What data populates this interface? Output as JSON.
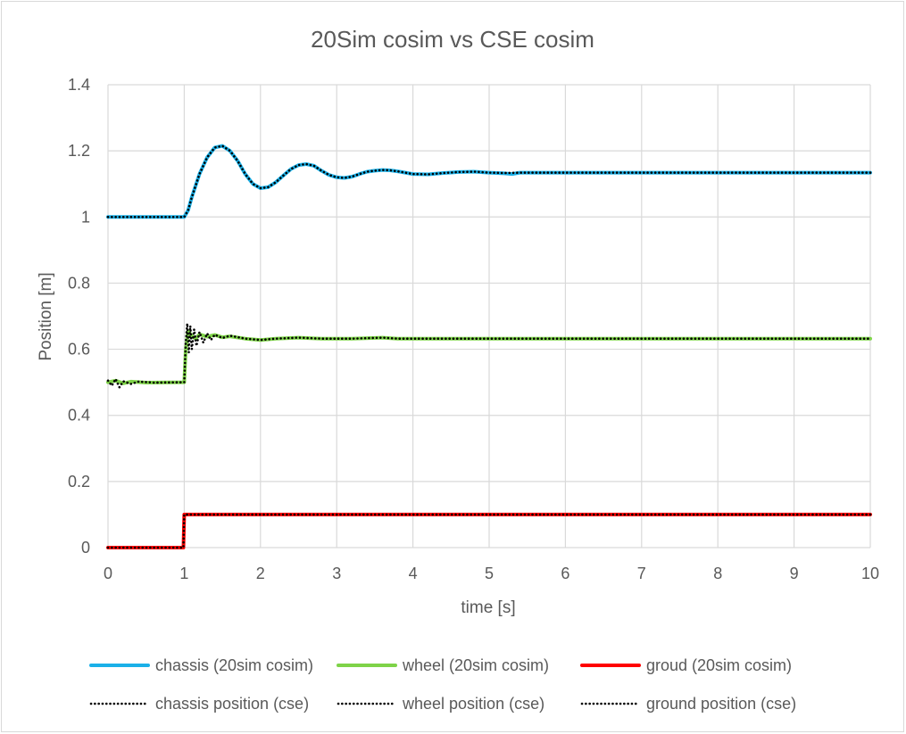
{
  "chart_data": {
    "type": "line",
    "title": "20Sim cosim vs CSE cosim",
    "xlabel": "time [s]",
    "ylabel": "Position [m]",
    "xlim": [
      0,
      10
    ],
    "ylim": [
      0,
      1.4
    ],
    "x_ticks": [
      "0",
      "1",
      "2",
      "3",
      "4",
      "5",
      "6",
      "7",
      "8",
      "9",
      "10"
    ],
    "y_ticks": [
      "0",
      "0.2",
      "0.4",
      "0.6",
      "0.8",
      "1",
      "1.2",
      "1.4"
    ],
    "grid": true,
    "legend_position": "bottom",
    "series": [
      {
        "name": "chassis (20sim cosim)",
        "color": "#1ab0e8",
        "style": "solid",
        "points": [
          [
            0,
            1
          ],
          [
            1,
            1
          ],
          [
            1.05,
            1.02
          ],
          [
            1.1,
            1.06
          ],
          [
            1.2,
            1.13
          ],
          [
            1.3,
            1.18
          ],
          [
            1.4,
            1.21
          ],
          [
            1.5,
            1.215
          ],
          [
            1.6,
            1.2
          ],
          [
            1.7,
            1.17
          ],
          [
            1.8,
            1.13
          ],
          [
            1.9,
            1.1
          ],
          [
            2.0,
            1.087
          ],
          [
            2.1,
            1.09
          ],
          [
            2.2,
            1.105
          ],
          [
            2.3,
            1.125
          ],
          [
            2.4,
            1.145
          ],
          [
            2.5,
            1.157
          ],
          [
            2.6,
            1.16
          ],
          [
            2.7,
            1.155
          ],
          [
            2.8,
            1.14
          ],
          [
            2.9,
            1.127
          ],
          [
            3.0,
            1.12
          ],
          [
            3.1,
            1.118
          ],
          [
            3.2,
            1.122
          ],
          [
            3.3,
            1.13
          ],
          [
            3.4,
            1.137
          ],
          [
            3.5,
            1.14
          ],
          [
            3.6,
            1.142
          ],
          [
            3.7,
            1.141
          ],
          [
            3.8,
            1.138
          ],
          [
            3.9,
            1.134
          ],
          [
            4.0,
            1.13
          ],
          [
            4.2,
            1.129
          ],
          [
            4.4,
            1.133
          ],
          [
            4.6,
            1.136
          ],
          [
            4.8,
            1.137
          ],
          [
            5.0,
            1.134
          ],
          [
            5.2,
            1.132
          ],
          [
            5.3,
            1.13
          ],
          [
            5.4,
            1.134
          ],
          [
            6,
            1.134
          ],
          [
            7,
            1.134
          ],
          [
            8,
            1.134
          ],
          [
            9,
            1.134
          ],
          [
            10,
            1.134
          ]
        ]
      },
      {
        "name": "wheel (20sim cosim)",
        "color": "#7ed348",
        "style": "solid",
        "points": [
          [
            0,
            0.5
          ],
          [
            0.1,
            0.505
          ],
          [
            0.2,
            0.497
          ],
          [
            0.3,
            0.502
          ],
          [
            0.5,
            0.499
          ],
          [
            1.0,
            0.5
          ],
          [
            1.02,
            0.6
          ],
          [
            1.05,
            0.655
          ],
          [
            1.1,
            0.64
          ],
          [
            1.15,
            0.632
          ],
          [
            1.2,
            0.645
          ],
          [
            1.3,
            0.638
          ],
          [
            1.4,
            0.643
          ],
          [
            1.5,
            0.636
          ],
          [
            1.6,
            0.639
          ],
          [
            1.8,
            0.632
          ],
          [
            2.0,
            0.628
          ],
          [
            2.2,
            0.632
          ],
          [
            2.5,
            0.635
          ],
          [
            2.8,
            0.632
          ],
          [
            3.2,
            0.632
          ],
          [
            3.6,
            0.635
          ],
          [
            3.8,
            0.632
          ],
          [
            4.5,
            0.632
          ],
          [
            6,
            0.632
          ],
          [
            8,
            0.632
          ],
          [
            10,
            0.632
          ]
        ]
      },
      {
        "name": "groud (20sim cosim)",
        "color": "#ff0000",
        "style": "solid",
        "points": [
          [
            0,
            0
          ],
          [
            0.99,
            0
          ],
          [
            1.0,
            0.1
          ],
          [
            10,
            0.1
          ]
        ]
      },
      {
        "name": "chassis position (cse)",
        "color": "#000000",
        "style": "dotted",
        "points": [
          [
            0,
            1
          ],
          [
            1,
            1
          ],
          [
            1.05,
            1.02
          ],
          [
            1.1,
            1.06
          ],
          [
            1.2,
            1.13
          ],
          [
            1.3,
            1.18
          ],
          [
            1.4,
            1.21
          ],
          [
            1.5,
            1.215
          ],
          [
            1.6,
            1.2
          ],
          [
            1.7,
            1.17
          ],
          [
            1.8,
            1.13
          ],
          [
            1.9,
            1.1
          ],
          [
            2.0,
            1.087
          ],
          [
            2.1,
            1.09
          ],
          [
            2.2,
            1.105
          ],
          [
            2.3,
            1.125
          ],
          [
            2.4,
            1.145
          ],
          [
            2.5,
            1.157
          ],
          [
            2.6,
            1.16
          ],
          [
            2.7,
            1.155
          ],
          [
            2.8,
            1.14
          ],
          [
            2.9,
            1.127
          ],
          [
            3.0,
            1.12
          ],
          [
            3.1,
            1.118
          ],
          [
            3.2,
            1.122
          ],
          [
            3.3,
            1.13
          ],
          [
            3.4,
            1.137
          ],
          [
            3.5,
            1.14
          ],
          [
            3.6,
            1.142
          ],
          [
            3.7,
            1.141
          ],
          [
            3.8,
            1.138
          ],
          [
            3.9,
            1.134
          ],
          [
            4.0,
            1.13
          ],
          [
            4.2,
            1.129
          ],
          [
            4.4,
            1.133
          ],
          [
            4.6,
            1.136
          ],
          [
            4.8,
            1.137
          ],
          [
            5.0,
            1.134
          ],
          [
            5.2,
            1.133
          ],
          [
            5.4,
            1.134
          ],
          [
            6,
            1.134
          ],
          [
            7,
            1.134
          ],
          [
            8,
            1.134
          ],
          [
            9,
            1.134
          ],
          [
            10,
            1.134
          ]
        ]
      },
      {
        "name": "wheel position (cse)",
        "color": "#000000",
        "style": "dotted",
        "points": [
          [
            0,
            0.505
          ],
          [
            0.05,
            0.49
          ],
          [
            0.1,
            0.51
          ],
          [
            0.15,
            0.485
          ],
          [
            0.2,
            0.503
          ],
          [
            0.3,
            0.495
          ],
          [
            0.4,
            0.502
          ],
          [
            0.6,
            0.499
          ],
          [
            1.0,
            0.5
          ],
          [
            1.02,
            0.62
          ],
          [
            1.04,
            0.678
          ],
          [
            1.06,
            0.59
          ],
          [
            1.08,
            0.67
          ],
          [
            1.1,
            0.6
          ],
          [
            1.13,
            0.66
          ],
          [
            1.16,
            0.61
          ],
          [
            1.2,
            0.652
          ],
          [
            1.25,
            0.62
          ],
          [
            1.3,
            0.648
          ],
          [
            1.35,
            0.628
          ],
          [
            1.4,
            0.644
          ],
          [
            1.5,
            0.634
          ],
          [
            1.6,
            0.641
          ],
          [
            1.8,
            0.632
          ],
          [
            2.0,
            0.628
          ],
          [
            2.2,
            0.632
          ],
          [
            2.5,
            0.635
          ],
          [
            2.8,
            0.632
          ],
          [
            3.2,
            0.632
          ],
          [
            3.6,
            0.635
          ],
          [
            3.8,
            0.632
          ],
          [
            4.5,
            0.632
          ],
          [
            6,
            0.632
          ],
          [
            8,
            0.632
          ],
          [
            10,
            0.632
          ]
        ]
      },
      {
        "name": "ground position (cse)",
        "color": "#000000",
        "style": "dotted",
        "points": [
          [
            0,
            0
          ],
          [
            0.99,
            0
          ],
          [
            1.0,
            0.1
          ],
          [
            10,
            0.1
          ]
        ]
      }
    ]
  }
}
